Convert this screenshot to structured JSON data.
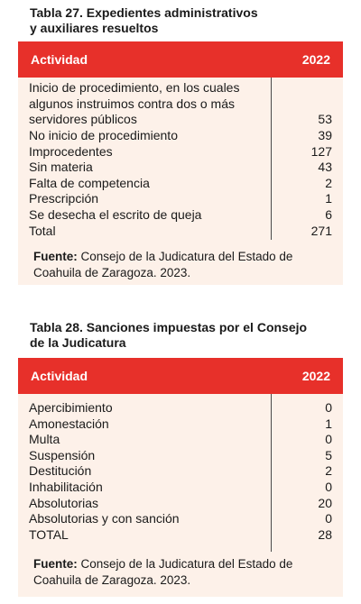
{
  "table27": {
    "title_line1": "Tabla 27.  Expedientes administrativos",
    "title_line2": "y auxiliares resueltos",
    "col_activity": "Actividad",
    "col_year": "2022",
    "rows": [
      {
        "label": "Inicio de procedimiento, en los cuales algunos instruimos contra dos o más servidores públicos",
        "value": "53"
      },
      {
        "label": "No inicio de procedimiento",
        "value": "39"
      },
      {
        "label": "Improcedentes",
        "value": "127"
      },
      {
        "label": "Sin materia",
        "value": "43"
      },
      {
        "label": "Falta de competencia",
        "value": "2"
      },
      {
        "label": "Prescripción",
        "value": "1"
      },
      {
        "label": "Se desecha el escrito de queja",
        "value": "6"
      },
      {
        "label": "Total",
        "value": "271"
      }
    ],
    "source_label": "Fuente:",
    "source_text": "Consejo de la Judicatura del Estado de Coahuila de Zaragoza. 2023."
  },
  "table28": {
    "title_line1": "Tabla 28. Sanciones impuestas por el Consejo",
    "title_line2": "de la Judicatura",
    "col_activity": "Actividad",
    "col_year": "2022",
    "rows": [
      {
        "label": "Apercibimiento",
        "value": "0"
      },
      {
        "label": "Amonestación",
        "value": "1"
      },
      {
        "label": "Multa",
        "value": "0"
      },
      {
        "label": "Suspensión",
        "value": "5"
      },
      {
        "label": "Destitución",
        "value": "2"
      },
      {
        "label": "Inhabilitación",
        "value": "0"
      },
      {
        "label": "Absolutorias",
        "value": "20"
      },
      {
        "label": "Absolutorias y con sanción",
        "value": "0"
      },
      {
        "label": "TOTAL",
        "value": "28"
      }
    ],
    "source_label": "Fuente:",
    "source_text": "Consejo de la Judicatura del Estado de Coahuila de Zaragoza. 2023."
  },
  "colors": {
    "header_bg": "#e7302a",
    "body_bg": "#fdf1e9"
  }
}
